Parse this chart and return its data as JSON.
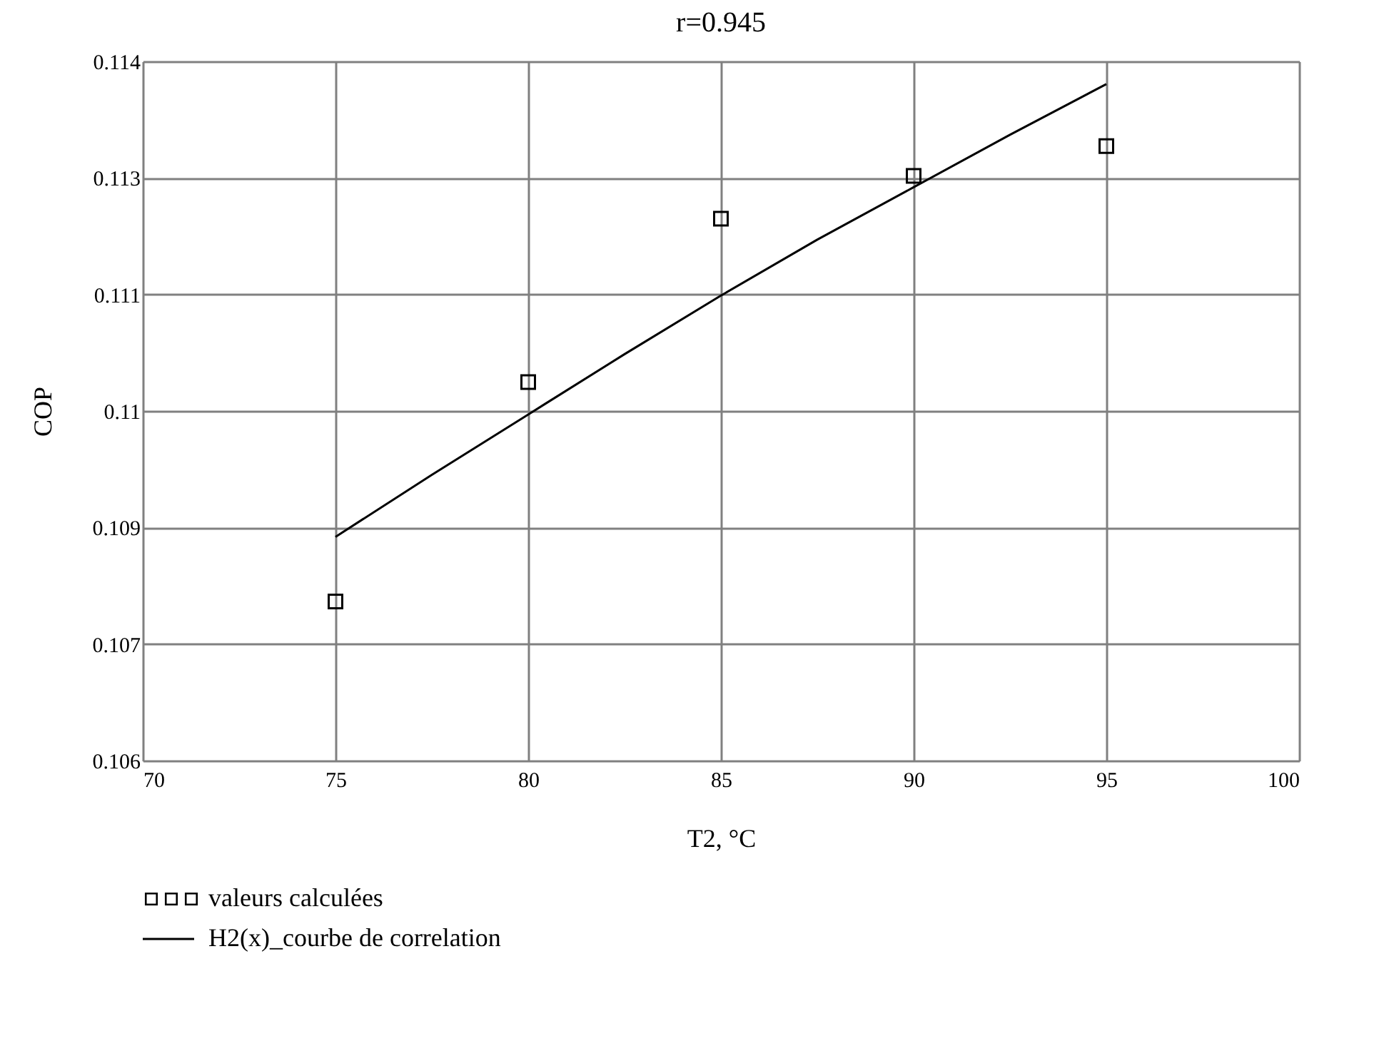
{
  "chart_data": {
    "type": "scatter",
    "title": "r=0.945",
    "xlabel": "T2, °C",
    "ylabel": "COP",
    "xlim": [
      70,
      100
    ],
    "xticks": [
      70,
      75,
      80,
      85,
      90,
      95,
      100
    ],
    "ylim": [
      0.106,
      0.114
    ],
    "yticks": [
      {
        "value": 0.106,
        "label": "0.106"
      },
      {
        "value": 0.107333,
        "label": "0.107"
      },
      {
        "value": 0.108667,
        "label": "0.109"
      },
      {
        "value": 0.11,
        "label": "0.11"
      },
      {
        "value": 0.111333,
        "label": "0.111"
      },
      {
        "value": 0.112667,
        "label": "0.113"
      },
      {
        "value": 0.114,
        "label": "0.114"
      }
    ],
    "grid": true,
    "legend": "bottom left",
    "series": [
      {
        "name": "valeurs calculées",
        "marker": "square",
        "color": "#000000",
        "x": [
          75,
          80,
          85,
          90,
          95
        ],
        "values": [
          0.10782,
          0.11033,
          0.1122,
          0.11269,
          0.11303
        ]
      },
      {
        "name": "H2(x)_courbe de correlation",
        "type": "line",
        "marker": "none",
        "line_style": "solid",
        "color": "#000000",
        "x": [
          75,
          77.5,
          80,
          82.5,
          85,
          87.5,
          90,
          92.5,
          95
        ],
        "values": [
          0.10856,
          0.10927,
          0.10996,
          0.11065,
          0.11132,
          0.11196,
          0.11256,
          0.11316,
          0.11374
        ]
      }
    ]
  }
}
